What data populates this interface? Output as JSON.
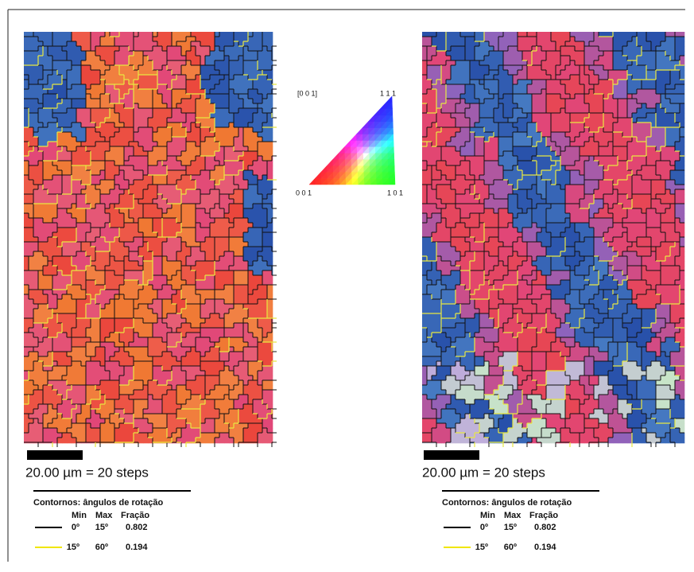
{
  "ipf_legend": {
    "top_left": "[0 0 1]",
    "top_right": "1 1 1",
    "bottom_left": "0 0 1",
    "bottom_right": "1 0 1"
  },
  "panels": [
    {
      "scale_label": "20.00 µm = 20 steps",
      "boundaries": {
        "title": "Contornos: ângulos de rotação",
        "headers": [
          "Min",
          "Max",
          "Fração"
        ],
        "rows": [
          [
            "0º",
            "15º",
            "0.802"
          ],
          [
            "15º",
            "60º",
            "0.194"
          ]
        ]
      }
    },
    {
      "scale_label": "20.00 µm = 20 steps",
      "boundaries": {
        "title": "Contornos: ângulos de rotação",
        "headers": [
          "Min",
          "Max",
          "Fração"
        ],
        "rows": [
          [
            "0º",
            "15º",
            "0.802"
          ],
          [
            "15º",
            "60º",
            "0.194"
          ]
        ]
      }
    }
  ]
}
